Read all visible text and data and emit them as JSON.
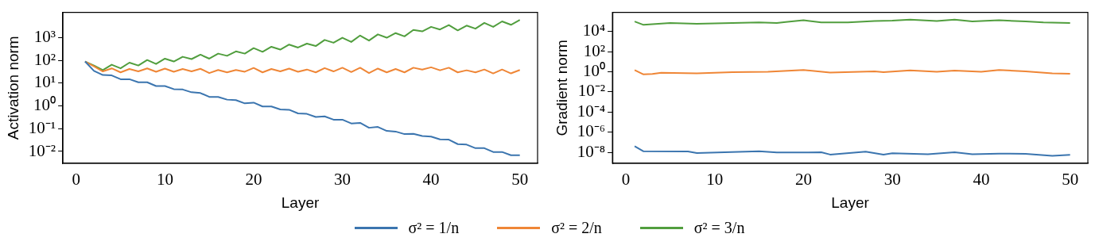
{
  "chart_data": [
    {
      "type": "line",
      "xlabel": "Layer",
      "ylabel": "Activation norm",
      "log": "y",
      "legend": "bottom",
      "xlim": [
        -1.5,
        52
      ],
      "xticks": [
        0,
        10,
        20,
        30,
        40,
        50
      ],
      "ylim": [
        0.003,
        13000
      ],
      "yticks": [
        {
          "value": 0.01,
          "label": "10⁻²"
        },
        {
          "value": 0.1,
          "label": "10⁻¹"
        },
        {
          "value": 1,
          "label": "10⁰"
        },
        {
          "value": 10,
          "label": "10¹"
        },
        {
          "value": 100,
          "label": "10²"
        },
        {
          "value": 1000,
          "label": "10³"
        }
      ],
      "x": [
        1,
        2,
        3,
        4,
        5,
        6,
        7,
        8,
        9,
        10,
        11,
        12,
        13,
        14,
        15,
        16,
        17,
        18,
        19,
        20,
        21,
        22,
        23,
        24,
        25,
        26,
        27,
        28,
        29,
        30,
        31,
        32,
        33,
        34,
        35,
        36,
        37,
        38,
        39,
        40,
        41,
        42,
        43,
        44,
        45,
        46,
        47,
        48,
        49,
        50
      ],
      "series": [
        {
          "name": "σ² = 1/n",
          "color": "#3b75af",
          "values": [
            90,
            35,
            23,
            22,
            15,
            15,
            11,
            11,
            7.5,
            7.5,
            5.5,
            5.3,
            4,
            3.7,
            2.5,
            2.5,
            1.9,
            1.8,
            1.3,
            1.4,
            0.95,
            0.95,
            0.7,
            0.68,
            0.47,
            0.45,
            0.33,
            0.35,
            0.25,
            0.25,
            0.17,
            0.18,
            0.11,
            0.12,
            0.08,
            0.075,
            0.058,
            0.06,
            0.048,
            0.045,
            0.034,
            0.033,
            0.021,
            0.02,
            0.014,
            0.014,
            0.0095,
            0.0095,
            0.0068,
            0.0068
          ]
        },
        {
          "name": "σ² = 2/n",
          "color": "#ef8636",
          "values": [
            90,
            55,
            33,
            45,
            30,
            42,
            33,
            45,
            32,
            44,
            32,
            42,
            33,
            43,
            28,
            38,
            30,
            38,
            32,
            47,
            30,
            42,
            33,
            44,
            32,
            40,
            30,
            46,
            33,
            48,
            31,
            48,
            28,
            44,
            30,
            42,
            30,
            48,
            40,
            50,
            37,
            48,
            30,
            37,
            30,
            40,
            27,
            40,
            27,
            38
          ]
        },
        {
          "name": "σ² = 3/n",
          "color": "#519e3e",
          "values": [
            90,
            60,
            38,
            65,
            45,
            80,
            60,
            105,
            70,
            120,
            90,
            145,
            115,
            180,
            120,
            200,
            160,
            250,
            200,
            350,
            240,
            400,
            300,
            500,
            370,
            550,
            430,
            800,
            600,
            1000,
            650,
            1250,
            750,
            1400,
            1000,
            1600,
            1150,
            2200,
            1900,
            3000,
            2300,
            3600,
            2100,
            3400,
            2500,
            4500,
            3000,
            5200,
            3700,
            6000
          ]
        }
      ]
    },
    {
      "type": "line",
      "xlabel": "Layer",
      "ylabel": "Gradient norm",
      "log": "y",
      "xlim": [
        -1.5,
        52
      ],
      "xticks": [
        0,
        10,
        20,
        30,
        40,
        50
      ],
      "ylim": [
        8e-10,
        800000.0
      ],
      "yticks": [
        {
          "value": 1e-08,
          "label": "10⁻⁸"
        },
        {
          "value": 1e-06,
          "label": "10⁻⁶"
        },
        {
          "value": 0.0001,
          "label": "10⁻⁴"
        },
        {
          "value": 0.01,
          "label": "10⁻²"
        },
        {
          "value": 1,
          "label": "10⁰"
        },
        {
          "value": 100,
          "label": "10²"
        },
        {
          "value": 10000,
          "label": "10⁴"
        }
      ],
      "series": [
        {
          "color": "#3b75af",
          "x": [
            1,
            2,
            7,
            8,
            15,
            17,
            22,
            23,
            27,
            29,
            30,
            34,
            37,
            39,
            42,
            45,
            48,
            50
          ],
          "values": [
            4e-08,
            1.25e-08,
            1.2e-08,
            8.5e-09,
            1.3e-08,
            9.5e-09,
            1e-08,
            6e-09,
            1.15e-08,
            6e-09,
            8e-09,
            6.5e-09,
            1e-08,
            6.5e-09,
            7.5e-09,
            7e-09,
            4.5e-09,
            5.5e-09
          ]
        },
        {
          "color": "#ef8636",
          "x": [
            1,
            2,
            3,
            4,
            8,
            12,
            16,
            20,
            23,
            28,
            29,
            32,
            35,
            37,
            40,
            42,
            45,
            48,
            50
          ],
          "values": [
            1.5,
            0.55,
            0.6,
            0.8,
            0.7,
            0.9,
            1,
            1.5,
            0.85,
            1.1,
            0.9,
            1.4,
            1,
            1.3,
            1,
            1.5,
            1.1,
            0.7,
            0.65
          ]
        },
        {
          "color": "#519e3e",
          "x": [
            1,
            2,
            5,
            8,
            10,
            15,
            17,
            18,
            20,
            22,
            25,
            28,
            30,
            32,
            35,
            37,
            39,
            42,
            45,
            47,
            50
          ],
          "values": [
            100000,
            46000,
            70000,
            60000,
            65000,
            80000,
            70000,
            90000,
            130000,
            80000,
            80000,
            110000,
            120000,
            150000,
            110000,
            150000,
            100000,
            130000,
            100000,
            80000,
            70000
          ]
        }
      ]
    }
  ]
}
